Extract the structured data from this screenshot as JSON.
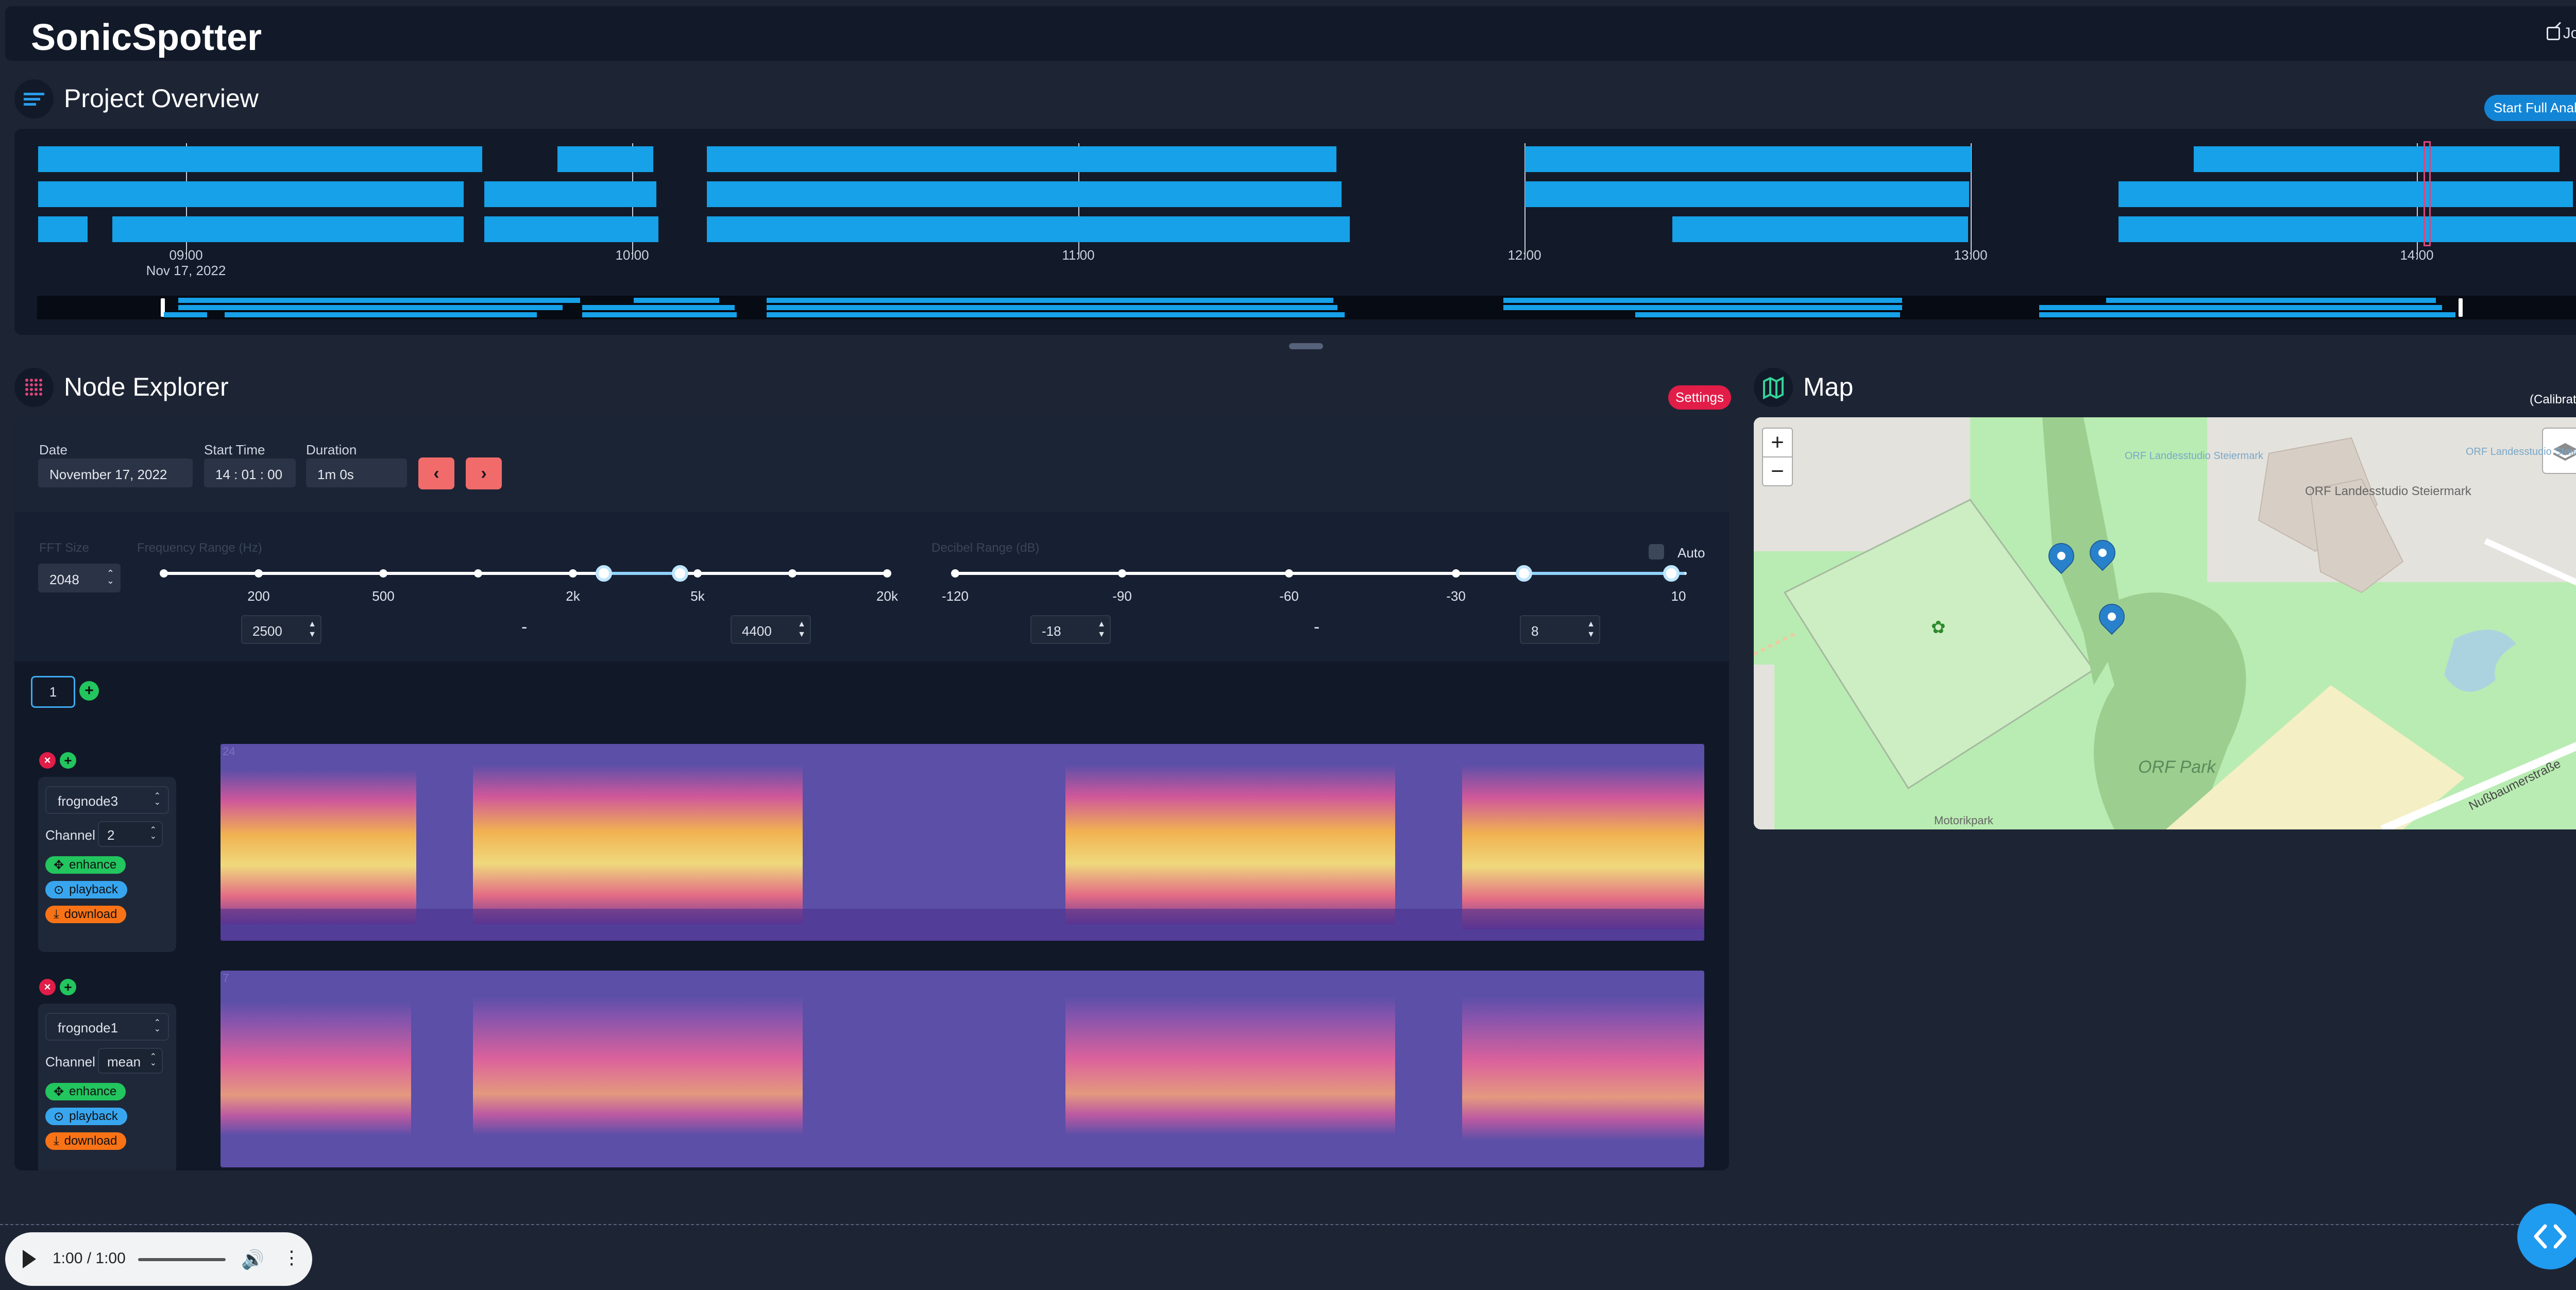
{
  "app": {
    "brand": "SonicSpotter",
    "jobs_label": "Jobs"
  },
  "overview": {
    "title": "Project Overview",
    "start_button": "Start Full Analysis",
    "time_labels": [
      "09:00",
      "10:00",
      "11:00",
      "12:00",
      "13:00",
      "14:00"
    ],
    "date_label": "Nov 17, 2022"
  },
  "node_explorer": {
    "title": "Node Explorer",
    "settings_label": "Settings",
    "date": {
      "label": "Date",
      "value": "November 17, 2022"
    },
    "start_time": {
      "label": "Start Time",
      "value": "14 : 01 : 00"
    },
    "duration": {
      "label": "Duration",
      "value": "1m 0s"
    },
    "fft": {
      "label": "FFT Size",
      "value": "2048"
    },
    "freq": {
      "label": "Frequency Range (Hz)",
      "ticks": [
        "200",
        "500",
        "2k",
        "5k",
        "20k"
      ],
      "min": "2500",
      "max": "4400",
      "separator": "-"
    },
    "decibel": {
      "label": "Decibel Range (dB)",
      "ticks": [
        "-120",
        "-90",
        "-60",
        "-30",
        "10"
      ],
      "min": "-18",
      "max": "8",
      "separator": "-"
    },
    "auto_label": "Auto",
    "tab": "1",
    "nodes": [
      {
        "name": "frognode3",
        "channel_label": "Channel",
        "channel": "2",
        "enhance": "enhance",
        "playback": "playback",
        "download": "download",
        "corner": "24"
      },
      {
        "name": "frognode1",
        "channel_label": "Channel",
        "channel": "mean",
        "enhance": "enhance",
        "playback": "playback",
        "download": "download",
        "corner": "7"
      }
    ]
  },
  "map": {
    "title": "Map",
    "calibration": "(Calibration)",
    "labels": [
      "ORF Landesstudio Steiermark",
      "ORF Park",
      "Motorikpark",
      "Nußbaumerstraße",
      "ORF Landesstudio Steiermark",
      "ORF Landesstudio Steiermark"
    ]
  },
  "audio": {
    "time": "1:00 / 1:00"
  }
}
